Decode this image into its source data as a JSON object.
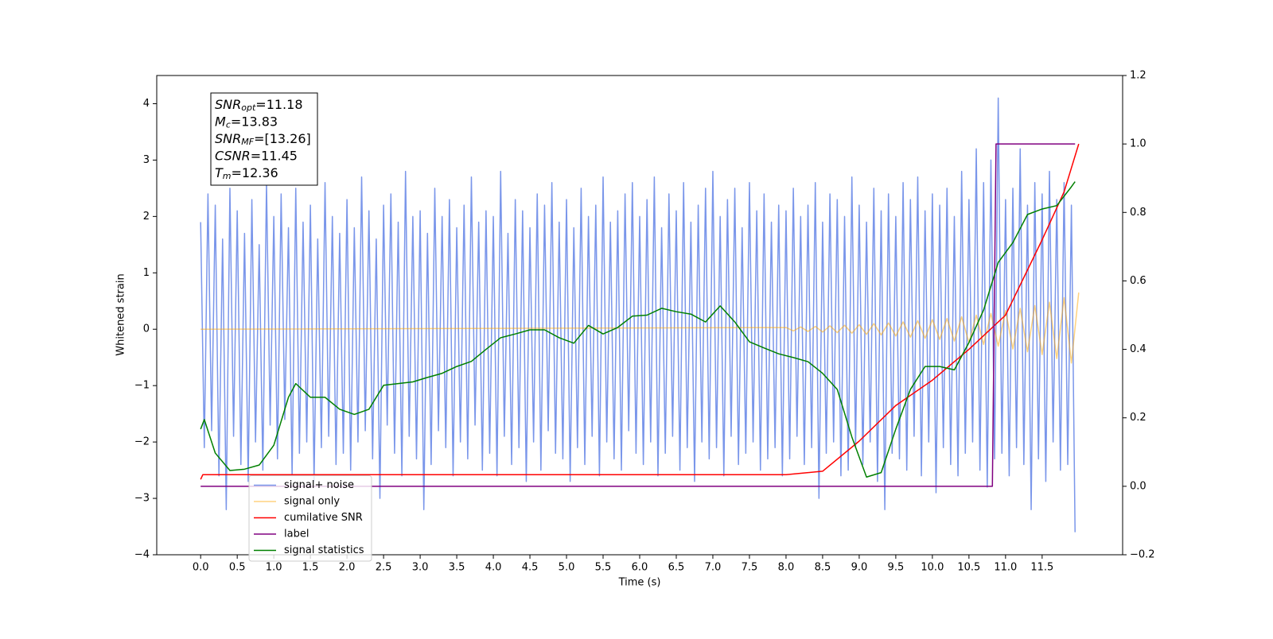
{
  "chart_data": {
    "type": "line",
    "xlabel": "Time (s)",
    "ylabel": "Whitened strain",
    "xlim": [
      -0.6,
      12.6
    ],
    "ylim": [
      -4,
      4.5
    ],
    "y2lim": [
      -0.2,
      1.2
    ],
    "xticks": [
      {
        "value": 0,
        "label": "0.0"
      },
      0.5,
      {
        "value": 1,
        "label": "1.0"
      },
      1.5,
      {
        "value": 2,
        "label": "2.0"
      },
      2.5,
      {
        "value": 3,
        "label": "3.0"
      },
      3.5,
      {
        "value": 4,
        "label": "4.0"
      },
      4.5,
      {
        "value": 5,
        "label": "5.0"
      },
      5.5,
      {
        "value": 6,
        "label": "6.0"
      },
      6.5,
      {
        "value": 7,
        "label": "7.0"
      },
      7.5,
      {
        "value": 8,
        "label": "8.0"
      },
      8.5,
      {
        "value": 9,
        "label": "9.0"
      },
      9.5,
      {
        "value": 10,
        "label": "10.0"
      },
      10.5,
      {
        "value": 11,
        "label": "11.0"
      },
      11.5
    ],
    "yticks": [
      {
        "value": -4,
        "label": "−4"
      },
      {
        "value": -3,
        "label": "−3"
      },
      {
        "value": -2,
        "label": "−2"
      },
      {
        "value": -1,
        "label": "−1"
      },
      0,
      1,
      2,
      3,
      4
    ],
    "y2ticks": [
      {
        "value": -0.2,
        "label": "−0.2"
      },
      {
        "value": 0,
        "label": "0.0"
      },
      0.2,
      0.4,
      0.6,
      0.8,
      {
        "value": 1,
        "label": "1.0"
      },
      1.2
    ],
    "annotation": [
      {
        "symbol": "SNR",
        "subscript": "opt",
        "text": "=11.18"
      },
      {
        "symbol": "M",
        "subscript": "c",
        "text": "=13.83"
      },
      {
        "symbol": "SNR",
        "subscript": "MF",
        "text": "=[13.26]"
      },
      {
        "symbol": "CSNR",
        "subscript": "",
        "text": "=11.45"
      },
      {
        "symbol": "T",
        "subscript": "m",
        "text": "=12.36"
      }
    ],
    "legend": "lower left",
    "series": [
      {
        "name": "signal+ noise",
        "color": "#4169e1",
        "alpha": 0.7,
        "x": [
          0,
          0.05,
          0.1,
          0.15,
          0.2,
          0.25,
          0.3,
          0.35,
          0.4,
          0.45,
          0.5,
          0.55,
          0.6,
          0.65,
          0.7,
          0.75,
          0.8,
          0.85,
          0.9,
          0.95,
          1,
          1.05,
          1.1,
          1.15,
          1.2,
          1.25,
          1.3,
          1.35,
          1.4,
          1.45,
          1.5,
          1.55,
          1.6,
          1.65,
          1.7,
          1.75,
          1.8,
          1.85,
          1.9,
          1.95,
          2,
          2.05,
          2.1,
          2.15,
          2.2,
          2.25,
          2.3,
          2.35,
          2.4,
          2.45,
          2.5,
          2.55,
          2.6,
          2.65,
          2.7,
          2.75,
          2.8,
          2.85,
          2.9,
          2.95,
          3,
          3.05,
          3.1,
          3.15,
          3.2,
          3.25,
          3.3,
          3.35,
          3.4,
          3.45,
          3.5,
          3.55,
          3.6,
          3.65,
          3.7,
          3.75,
          3.8,
          3.85,
          3.9,
          3.95,
          4,
          4.05,
          4.1,
          4.15,
          4.2,
          4.25,
          4.3,
          4.35,
          4.4,
          4.45,
          4.5,
          4.55,
          4.6,
          4.65,
          4.7,
          4.75,
          4.8,
          4.85,
          4.9,
          4.95,
          5,
          5.05,
          5.1,
          5.15,
          5.2,
          5.25,
          5.3,
          5.35,
          5.4,
          5.45,
          5.5,
          5.55,
          5.6,
          5.65,
          5.7,
          5.75,
          5.8,
          5.85,
          5.9,
          5.95,
          6,
          6.05,
          6.1,
          6.15,
          6.2,
          6.25,
          6.3,
          6.35,
          6.4,
          6.45,
          6.5,
          6.55,
          6.6,
          6.65,
          6.7,
          6.75,
          6.8,
          6.85,
          6.9,
          6.95,
          7,
          7.05,
          7.1,
          7.15,
          7.2,
          7.25,
          7.3,
          7.35,
          7.4,
          7.45,
          7.5,
          7.55,
          7.6,
          7.65,
          7.7,
          7.75,
          7.8,
          7.85,
          7.9,
          7.95,
          8,
          8.05,
          8.1,
          8.15,
          8.2,
          8.25,
          8.3,
          8.35,
          8.4,
          8.45,
          8.5,
          8.55,
          8.6,
          8.65,
          8.7,
          8.75,
          8.8,
          8.85,
          8.9,
          8.95,
          9,
          9.05,
          9.1,
          9.15,
          9.2,
          9.25,
          9.3,
          9.35,
          9.4,
          9.45,
          9.5,
          9.55,
          9.6,
          9.65,
          9.7,
          9.75,
          9.8,
          9.85,
          9.9,
          9.95,
          10,
          10.05,
          10.1,
          10.15,
          10.2,
          10.25,
          10.3,
          10.35,
          10.4,
          10.45,
          10.5,
          10.55,
          10.6,
          10.65,
          10.7,
          10.75,
          10.8,
          10.85,
          10.9,
          10.95,
          11,
          11.05,
          11.1,
          11.15,
          11.2,
          11.25,
          11.3,
          11.35,
          11.4,
          11.45,
          11.5,
          11.55,
          11.6,
          11.65,
          11.7,
          11.75,
          11.8,
          11.85,
          11.9,
          11.95
        ],
        "values": [
          1.9,
          -2.1,
          2.4,
          -1.8,
          2.2,
          -2.6,
          1.6,
          -3.2,
          2.5,
          -1.9,
          2.1,
          -2.4,
          1.7,
          -2.7,
          2.3,
          -2.0,
          1.5,
          -2.5,
          2.6,
          -1.7,
          2.0,
          -2.3,
          2.4,
          -1.6,
          1.8,
          -2.6,
          2.5,
          -2.2,
          1.9,
          -2.0,
          2.2,
          -2.7,
          1.6,
          -2.1,
          2.6,
          -1.9,
          2.0,
          -2.4,
          1.7,
          -2.2,
          2.3,
          -2.5,
          1.8,
          -2.0,
          2.7,
          -1.8,
          2.1,
          -2.3,
          1.6,
          -3.0,
          2.2,
          -1.7,
          2.4,
          -2.2,
          1.9,
          -2.6,
          2.8,
          -1.9,
          2.0,
          -2.3,
          2.1,
          -3.2,
          1.7,
          -2.4,
          2.5,
          -1.8,
          2.0,
          -2.1,
          2.3,
          -2.6,
          1.8,
          -2.0,
          2.2,
          -2.3,
          2.7,
          -1.7,
          1.9,
          -2.5,
          2.1,
          -2.2,
          2.0,
          -2.6,
          2.8,
          -1.9,
          1.7,
          -2.4,
          2.3,
          -2.1,
          2.1,
          -2.7,
          1.8,
          -2.0,
          2.4,
          -2.5,
          2.2,
          -1.8,
          2.6,
          -2.2,
          1.9,
          -2.3,
          2.3,
          -2.7,
          1.8,
          -2.1,
          2.5,
          -2.4,
          2.0,
          -1.9,
          2.2,
          -2.6,
          2.7,
          -2.0,
          1.9,
          -2.3,
          2.1,
          -2.5,
          2.4,
          -1.8,
          2.6,
          -2.2,
          2.0,
          -2.4,
          2.3,
          -2.0,
          2.7,
          -2.6,
          1.8,
          -2.2,
          2.4,
          -1.9,
          2.1,
          -2.5,
          2.6,
          -2.1,
          1.9,
          -2.7,
          2.2,
          -2.0,
          2.5,
          -2.3,
          2.8,
          -2.1,
          2.0,
          -2.6,
          2.3,
          -1.9,
          2.5,
          -2.4,
          1.8,
          -2.2,
          2.6,
          -2.0,
          2.1,
          -2.5,
          2.4,
          -2.3,
          1.9,
          -2.1,
          2.2,
          -2.6,
          2.1,
          -2.3,
          2.5,
          -1.9,
          2.0,
          -2.4,
          2.2,
          -2.1,
          2.6,
          -3.0,
          1.9,
          -2.2,
          2.4,
          -2.0,
          2.3,
          -2.6,
          2.0,
          -2.5,
          2.7,
          -2.1,
          2.2,
          -2.4,
          1.9,
          -2.0,
          2.5,
          -2.7,
          2.1,
          -3.2,
          2.4,
          -2.2,
          2.0,
          -2.3,
          2.6,
          -2.5,
          2.3,
          -1.9,
          2.7,
          -2.6,
          2.1,
          -2.0,
          2.4,
          -2.9,
          2.2,
          -2.1,
          2.5,
          -2.4,
          2.0,
          -2.6,
          2.8,
          -2.2,
          2.3,
          -2.0,
          3.2,
          -2.5,
          2.6,
          -2.8,
          3.0,
          -2.3,
          4.1,
          -2.2,
          2.3,
          -2.6,
          2.5,
          -2.1,
          3.2,
          -2.4,
          2.2,
          -3.2,
          2.6,
          -2.3,
          2.4,
          -2.7,
          2.8,
          -2.0,
          2.3,
          -2.5,
          2.6,
          -2.4,
          2.2,
          -3.6
        ]
      },
      {
        "name": "signal only",
        "color": "#ffa500",
        "alpha": 0.5,
        "x": [
          0,
          8,
          8.1,
          8.2,
          8.3,
          8.4,
          8.5,
          8.6,
          8.7,
          8.8,
          8.9,
          9,
          9.1,
          9.2,
          9.3,
          9.4,
          9.5,
          9.6,
          9.7,
          9.8,
          9.9,
          10,
          10.1,
          10.2,
          10.3,
          10.4,
          10.5,
          10.6,
          10.7,
          10.8,
          10.9,
          11,
          11.1,
          11.2,
          11.3,
          11.4,
          11.5,
          11.6,
          11.7,
          11.8,
          11.9,
          12
        ],
        "values": [
          0,
          0.03,
          -0.03,
          0.04,
          -0.04,
          0.05,
          -0.05,
          0.06,
          -0.06,
          0.07,
          -0.07,
          0.08,
          -0.09,
          0.1,
          -0.1,
          0.11,
          -0.12,
          0.13,
          -0.14,
          0.15,
          -0.16,
          0.17,
          -0.18,
          0.19,
          -0.21,
          0.22,
          -0.24,
          0.25,
          -0.27,
          0.28,
          -0.3,
          0.33,
          -0.35,
          0.37,
          -0.4,
          0.42,
          -0.45,
          0.48,
          -0.52,
          0.56,
          -0.6,
          0.65
        ]
      },
      {
        "name": "cumilative SNR",
        "color": "#ff0000",
        "alpha": 1,
        "axis": "y2",
        "x": [
          0,
          0.03,
          8,
          8.5,
          9,
          9.5,
          10,
          10.5,
          11,
          11.5,
          11.8,
          12
        ],
        "values": [
          0.02,
          0.034,
          0.034,
          0.044,
          0.132,
          0.236,
          0.31,
          0.4,
          0.5,
          0.72,
          0.86,
          1
        ]
      },
      {
        "name": "label",
        "color": "#800080",
        "alpha": 1,
        "axis": "y2",
        "x": [
          0,
          10.82,
          10.87,
          11.95
        ],
        "values": [
          0,
          0,
          1,
          1
        ]
      },
      {
        "name": "signal statistics",
        "color": "#008000",
        "alpha": 1,
        "axis": "y2",
        "x": [
          0,
          0.05,
          0.2,
          0.4,
          0.6,
          0.8,
          1,
          1.2,
          1.3,
          1.5,
          1.7,
          1.9,
          2.1,
          2.3,
          2.5,
          2.7,
          2.9,
          3.1,
          3.3,
          3.5,
          3.7,
          3.9,
          4.1,
          4.3,
          4.5,
          4.7,
          4.9,
          5.1,
          5.3,
          5.5,
          5.7,
          5.9,
          6.1,
          6.3,
          6.5,
          6.7,
          6.9,
          7.1,
          7.3,
          7.5,
          7.7,
          7.9,
          8.1,
          8.3,
          8.5,
          8.7,
          8.9,
          9.1,
          9.3,
          9.5,
          9.7,
          9.9,
          10.1,
          10.3,
          10.5,
          10.7,
          10.9,
          11.1,
          11.3,
          11.5,
          11.7,
          11.9,
          11.95
        ],
        "values": [
          0.167,
          0.195,
          0.097,
          0.046,
          0.05,
          0.062,
          0.12,
          0.26,
          0.3,
          0.26,
          0.26,
          0.225,
          0.21,
          0.225,
          0.295,
          0.3,
          0.305,
          0.318,
          0.33,
          0.35,
          0.365,
          0.4,
          0.434,
          0.445,
          0.457,
          0.457,
          0.434,
          0.418,
          0.47,
          0.445,
          0.464,
          0.497,
          0.5,
          0.52,
          0.51,
          0.503,
          0.48,
          0.527,
          0.48,
          0.422,
          0.404,
          0.387,
          0.376,
          0.364,
          0.33,
          0.283,
          0.144,
          0.027,
          0.04,
          0.167,
          0.283,
          0.35,
          0.35,
          0.34,
          0.42,
          0.515,
          0.654,
          0.712,
          0.794,
          0.81,
          0.82,
          0.875,
          0.89
        ]
      }
    ]
  }
}
